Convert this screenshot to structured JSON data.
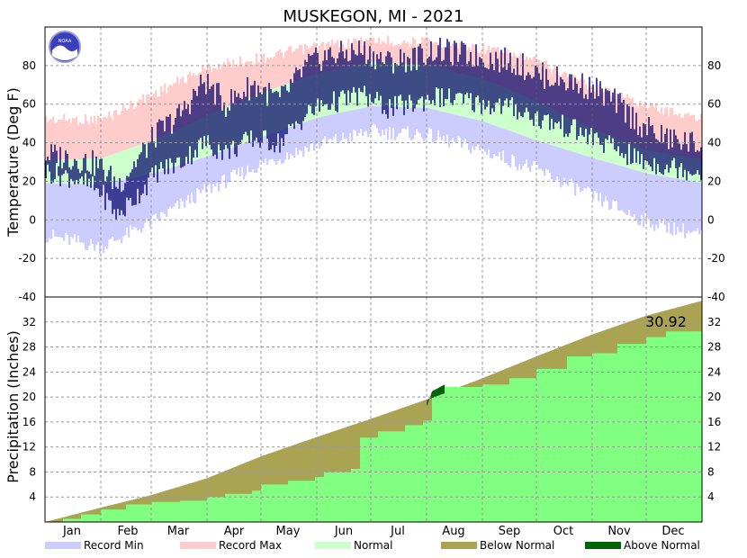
{
  "chart_data": [
    {
      "type": "area",
      "panel": "temperature",
      "title": "MUSKEGON, MI - 2021",
      "ylabel": "Temperature (Deg F)",
      "ylim": [
        -40,
        100
      ],
      "yticks": [
        -20,
        0,
        20,
        40,
        60,
        80
      ],
      "grid": true,
      "months": [
        "Jan",
        "Feb",
        "Mar",
        "Apr",
        "May",
        "Jun",
        "Jul",
        "Aug",
        "Sep",
        "Oct",
        "Nov",
        "Dec"
      ],
      "month_midday": [
        15,
        46,
        74,
        105,
        135,
        166,
        196,
        227,
        258,
        288,
        319,
        349
      ],
      "month_start_day": [
        0,
        31,
        59,
        90,
        120,
        151,
        181,
        212,
        243,
        273,
        304,
        334,
        365
      ],
      "normal_high": {
        "day": [
          0,
          31,
          59,
          90,
          120,
          151,
          181,
          212,
          243,
          273,
          304,
          334,
          365
        ],
        "value": [
          31,
          32,
          41,
          54,
          66,
          76,
          82,
          80,
          73,
          61,
          47,
          36,
          31
        ]
      },
      "normal_low": {
        "day": [
          0,
          31,
          59,
          90,
          120,
          151,
          181,
          212,
          243,
          273,
          304,
          334,
          365
        ],
        "value": [
          19,
          18,
          24,
          33,
          43,
          53,
          59,
          58,
          51,
          41,
          32,
          24,
          19
        ]
      },
      "record_max": {
        "day": [
          0,
          31,
          59,
          90,
          120,
          151,
          181,
          212,
          243,
          273,
          304,
          334,
          365
        ],
        "value": [
          55,
          55,
          68,
          82,
          87,
          93,
          96,
          95,
          92,
          85,
          72,
          62,
          55
        ]
      },
      "record_min": {
        "day": [
          0,
          31,
          59,
          90,
          120,
          151,
          181,
          212,
          243,
          273,
          304,
          334,
          365
        ],
        "value": [
          -12,
          -18,
          -5,
          12,
          25,
          35,
          42,
          40,
          32,
          22,
          8,
          -5,
          -12
        ]
      },
      "observed_high": {
        "day": [
          0,
          15,
          30,
          40,
          50,
          62,
          75,
          88,
          100,
          115,
          130,
          145,
          155,
          165,
          175,
          190,
          205,
          215,
          230,
          245,
          260,
          275,
          290,
          305,
          318,
          332,
          345,
          358,
          364
        ],
        "value": [
          34,
          32,
          28,
          18,
          30,
          45,
          55,
          72,
          60,
          70,
          62,
          80,
          85,
          86,
          88,
          82,
          84,
          88,
          86,
          84,
          82,
          75,
          72,
          68,
          60,
          48,
          42,
          40,
          38
        ]
      },
      "observed_low": {
        "day": [
          0,
          15,
          30,
          40,
          50,
          62,
          75,
          88,
          100,
          115,
          130,
          145,
          155,
          165,
          175,
          190,
          205,
          215,
          230,
          245,
          260,
          275,
          290,
          305,
          318,
          332,
          345,
          358,
          364
        ],
        "value": [
          25,
          22,
          15,
          2,
          12,
          25,
          30,
          40,
          35,
          42,
          40,
          55,
          60,
          62,
          65,
          58,
          60,
          64,
          62,
          60,
          58,
          52,
          48,
          42,
          36,
          30,
          28,
          26,
          25
        ]
      }
    },
    {
      "type": "area",
      "panel": "precipitation",
      "ylabel": "Precipitation (Inches)",
      "ylim": [
        0,
        36
      ],
      "yticks": [
        4,
        8,
        12,
        16,
        20,
        24,
        28,
        32
      ],
      "grid": true,
      "annotation": "30.92",
      "normal_cumulative": {
        "day": [
          0,
          31,
          59,
          90,
          120,
          151,
          181,
          212,
          243,
          273,
          304,
          334,
          365
        ],
        "value": [
          0,
          2.3,
          4.3,
          7.0,
          10.5,
          13.6,
          16.5,
          19.6,
          23.0,
          26.5,
          30.0,
          33.0,
          35.4
        ]
      },
      "observed_cumulative": {
        "day": [
          0,
          10,
          20,
          31,
          45,
          59,
          75,
          90,
          100,
          115,
          120,
          135,
          150,
          155,
          165,
          170,
          175,
          185,
          200,
          210,
          215,
          222,
          228,
          243,
          258,
          273,
          290,
          304,
          318,
          334,
          345,
          365
        ],
        "value": [
          0,
          0.5,
          1.2,
          2.0,
          2.8,
          3.2,
          3.4,
          4.0,
          4.5,
          5.0,
          6.0,
          6.6,
          7.2,
          8.0,
          8.0,
          8.5,
          13.5,
          14.5,
          15.5,
          16.2,
          20.5,
          21.6,
          21.6,
          22.0,
          23.0,
          24.5,
          26.5,
          27.0,
          28.5,
          29.6,
          30.5,
          30.92
        ]
      },
      "above_normal_span": {
        "from_day": 212,
        "to_day": 222
      }
    }
  ],
  "legend": [
    {
      "label": "Record Min",
      "color": "#ccccff"
    },
    {
      "label": "Record Max",
      "color": "#ffcccc"
    },
    {
      "label": "Normal",
      "color": "#ccffcc"
    },
    {
      "label": "Below Normal",
      "color": "#aaa452"
    },
    {
      "label": "Above Normal",
      "color": "#006400"
    }
  ],
  "colors": {
    "record_min": "#ccccff",
    "record_max": "#ffcccc",
    "normal": "#ccffcc",
    "observed": "#000066",
    "observed_precip": "#80ff80",
    "below_normal": "#aaa452",
    "above_normal": "#006400",
    "grid": "#999999",
    "noaa_blue": "#3a3fbd"
  },
  "logo": {
    "text": "NOAA"
  }
}
